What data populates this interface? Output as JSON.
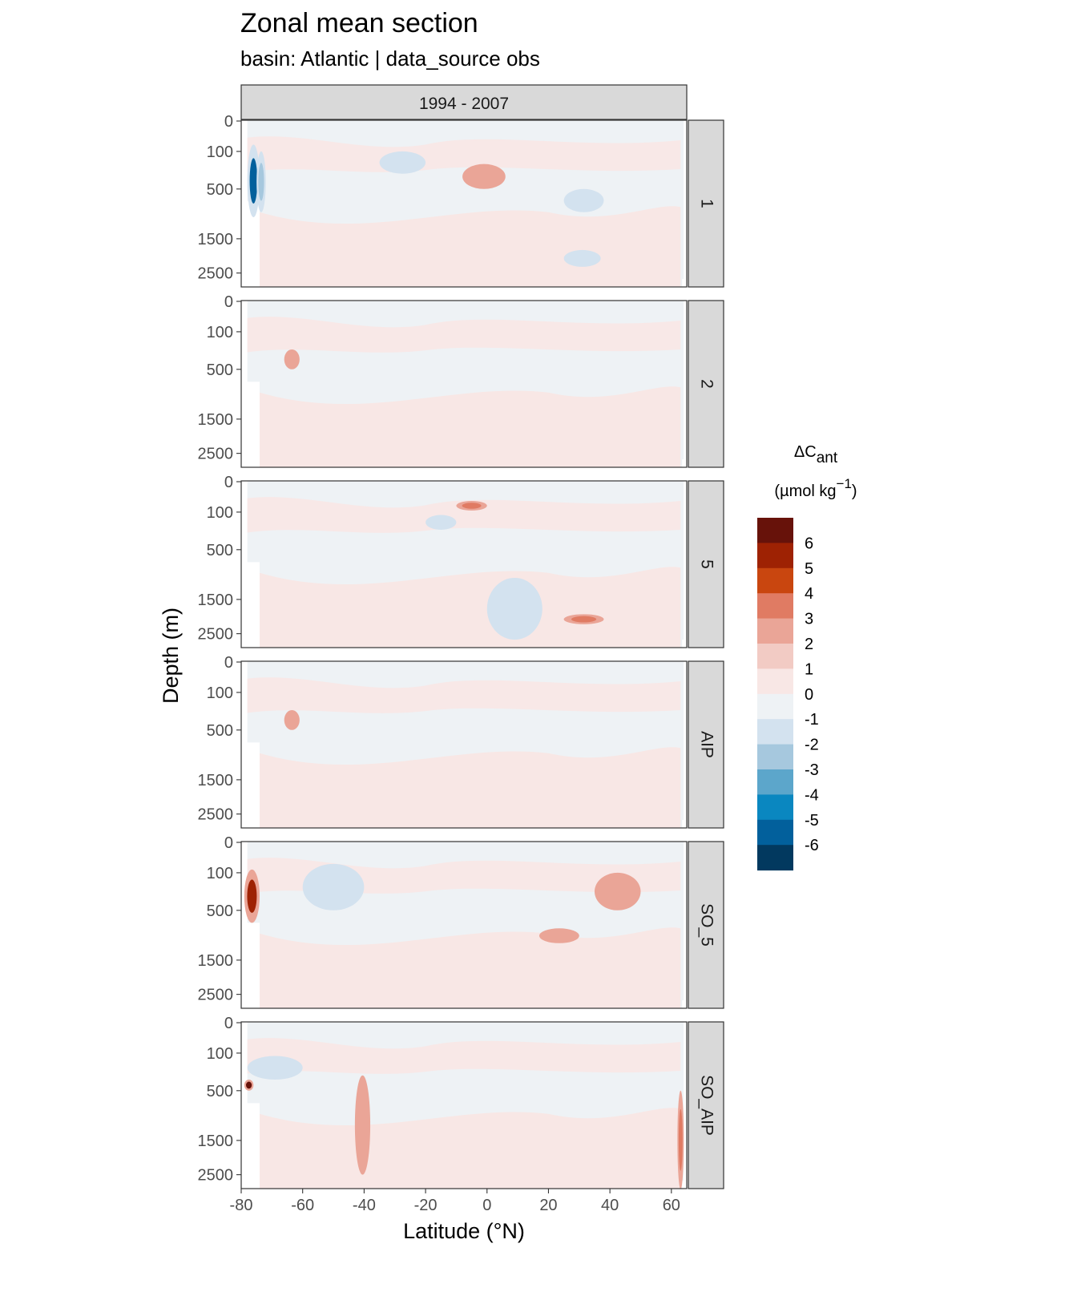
{
  "chart_data": {
    "type": "heatmap",
    "title": "Zonal mean section",
    "subtitle": "basin: Atlantic | data_source obs",
    "xlabel": "Latitude (°N)",
    "ylabel": "Depth (m)",
    "column_strip": "1994 - 2007",
    "panels": [
      "1",
      "2",
      "5",
      "AIP",
      "SO_5",
      "SO_AIP"
    ],
    "x_ticks": [
      -80,
      -60,
      -40,
      -20,
      0,
      20,
      40,
      60
    ],
    "xlim": [
      -80,
      65
    ],
    "y_ticks": [
      0,
      100,
      500,
      1500,
      2500
    ],
    "legend": {
      "title_main": "ΔC",
      "title_sub": "ant",
      "unit_open": "(µmol kg",
      "unit_sup": "−1",
      "unit_close": ")",
      "labels": [
        "6",
        "5",
        "4",
        "3",
        "2",
        "1",
        "0",
        "-1",
        "-2",
        "-3",
        "-4",
        "-5",
        "-6"
      ],
      "colors": [
        "#67120a",
        "#9e2203",
        "#c9460f",
        "#e07b63",
        "#eaa597",
        "#f2cbc4",
        "#f8e7e5",
        "#eef2f5",
        "#d3e2ef",
        "#a6c8de",
        "#5ca6cb",
        "#0a87c0",
        "#02609c",
        "#02395f"
      ]
    },
    "features": [
      {
        "panel": 0,
        "x": [
          -78,
          -74
        ],
        "depth": [
          60,
          1000
        ],
        "value": -6
      },
      {
        "panel": 0,
        "x": [
          -75,
          -72
        ],
        "depth": [
          100,
          900
        ],
        "value": -3
      },
      {
        "panel": 0,
        "x": [
          -35,
          -20
        ],
        "depth": [
          100,
          300
        ],
        "value": -2
      },
      {
        "panel": 0,
        "x": [
          -8,
          6
        ],
        "depth": [
          200,
          500
        ],
        "value": 2
      },
      {
        "panel": 0,
        "x": [
          25,
          38
        ],
        "depth": [
          500,
          900
        ],
        "value": -2
      },
      {
        "panel": 0,
        "x": [
          25,
          37
        ],
        "depth": [
          1800,
          2300
        ],
        "value": -2
      },
      {
        "panel": 1,
        "x": [
          -66,
          -61
        ],
        "depth": [
          250,
          500
        ],
        "value": 2
      },
      {
        "panel": 2,
        "x": [
          -10,
          0
        ],
        "depth": [
          40,
          90
        ],
        "value": 3
      },
      {
        "panel": 2,
        "x": [
          -20,
          -10
        ],
        "depth": [
          120,
          250
        ],
        "value": -2
      },
      {
        "panel": 2,
        "x": [
          0,
          18
        ],
        "depth": [
          1000,
          2700
        ],
        "value": -2
      },
      {
        "panel": 2,
        "x": [
          25,
          38
        ],
        "depth": [
          1900,
          2200
        ],
        "value": 3
      },
      {
        "panel": 3,
        "x": [
          -66,
          -61
        ],
        "depth": [
          250,
          500
        ],
        "value": 2
      },
      {
        "panel": 4,
        "x": [
          -79,
          -74
        ],
        "depth": [
          80,
          700
        ],
        "value": 5
      },
      {
        "panel": 4,
        "x": [
          -60,
          -40
        ],
        "depth": [
          50,
          500
        ],
        "value": -2
      },
      {
        "panel": 4,
        "x": [
          17,
          30
        ],
        "depth": [
          800,
          1100
        ],
        "value": 2
      },
      {
        "panel": 4,
        "x": [
          35,
          50
        ],
        "depth": [
          100,
          500
        ],
        "value": 2
      },
      {
        "panel": 5,
        "x": [
          -78,
          -60
        ],
        "depth": [
          120,
          350
        ],
        "value": -2
      },
      {
        "panel": 5,
        "x": [
          -43,
          -38
        ],
        "depth": [
          300,
          2500
        ],
        "value": 2
      },
      {
        "panel": 5,
        "x": [
          -79,
          -76
        ],
        "depth": [
          350,
          500
        ],
        "value": 6
      },
      {
        "panel": 5,
        "x": [
          62,
          64
        ],
        "depth": [
          500,
          3000
        ],
        "value": 3
      }
    ]
  }
}
